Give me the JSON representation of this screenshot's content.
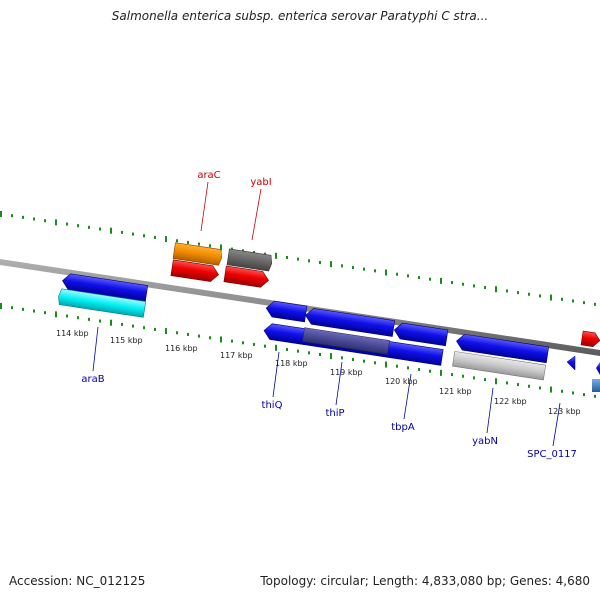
{
  "header": {
    "title": "Salmonella enterica subsp. enterica serovar Paratyphi C stra..."
  },
  "footer": {
    "accession": "Accession: NC_012125",
    "summary": "Topology: circular; Length: 4,833,080 bp; Genes: 4,680"
  },
  "colors": {
    "backbone": "#888888",
    "tick": "#1a8a1a",
    "forward_label": "#cc0000",
    "reverse_label": "#0000aa",
    "kbp_label": "#222222"
  },
  "scale": {
    "labels": [
      "114 kbp",
      "115 kbp",
      "116 kbp",
      "117 kbp",
      "118 kbp",
      "119 kbp",
      "120 kbp",
      "121 kbp",
      "122 kbp",
      "123 kbp"
    ]
  },
  "forward_gene_labels": [
    "araC",
    "yabI"
  ],
  "reverse_gene_labels": [
    "araB",
    "thiQ",
    "thiP",
    "tbpA",
    "yabN",
    "SPC_0117"
  ]
}
